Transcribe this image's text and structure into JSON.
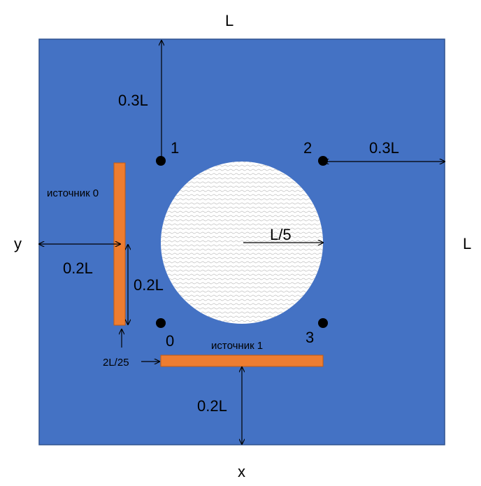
{
  "labels": {
    "top_L": "L",
    "right_L": "L",
    "axis_y": "y",
    "axis_x": "x",
    "dim_top": "0.3L",
    "dim_right": "0.3L",
    "dim_left": "0.2L",
    "dim_bottom": "0.2L",
    "dim_source_height": "0.2L",
    "radius": "L/5",
    "thickness": "2L/25"
  },
  "points": [
    "0",
    "1",
    "2",
    "3"
  ],
  "sources": {
    "source0": "источник 0",
    "source1": "источник 1"
  },
  "colors": {
    "domain": "#4472c4",
    "domain_border": "#2f528f",
    "source": "#ed7d31",
    "source_border": "#c55a11",
    "hole": "#ffffff",
    "point": "#000000"
  }
}
